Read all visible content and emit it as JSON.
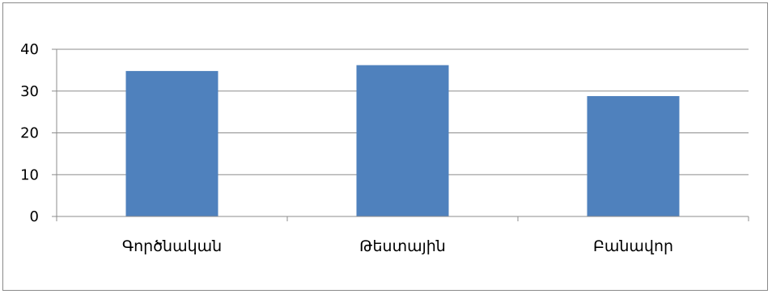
{
  "chart_data": {
    "type": "bar",
    "categories": [
      "Գործնական",
      "Թեստային",
      "Բանավոր"
    ],
    "values": [
      34.8,
      36.2,
      28.8
    ],
    "ylim": [
      0,
      40
    ],
    "yticks": [
      0,
      10,
      20,
      30,
      40
    ],
    "grid": true,
    "legend": "none",
    "bar_color": "#4f81bd",
    "grid_color": "#8c8c8c",
    "axis_color": "#8c8c8c"
  }
}
